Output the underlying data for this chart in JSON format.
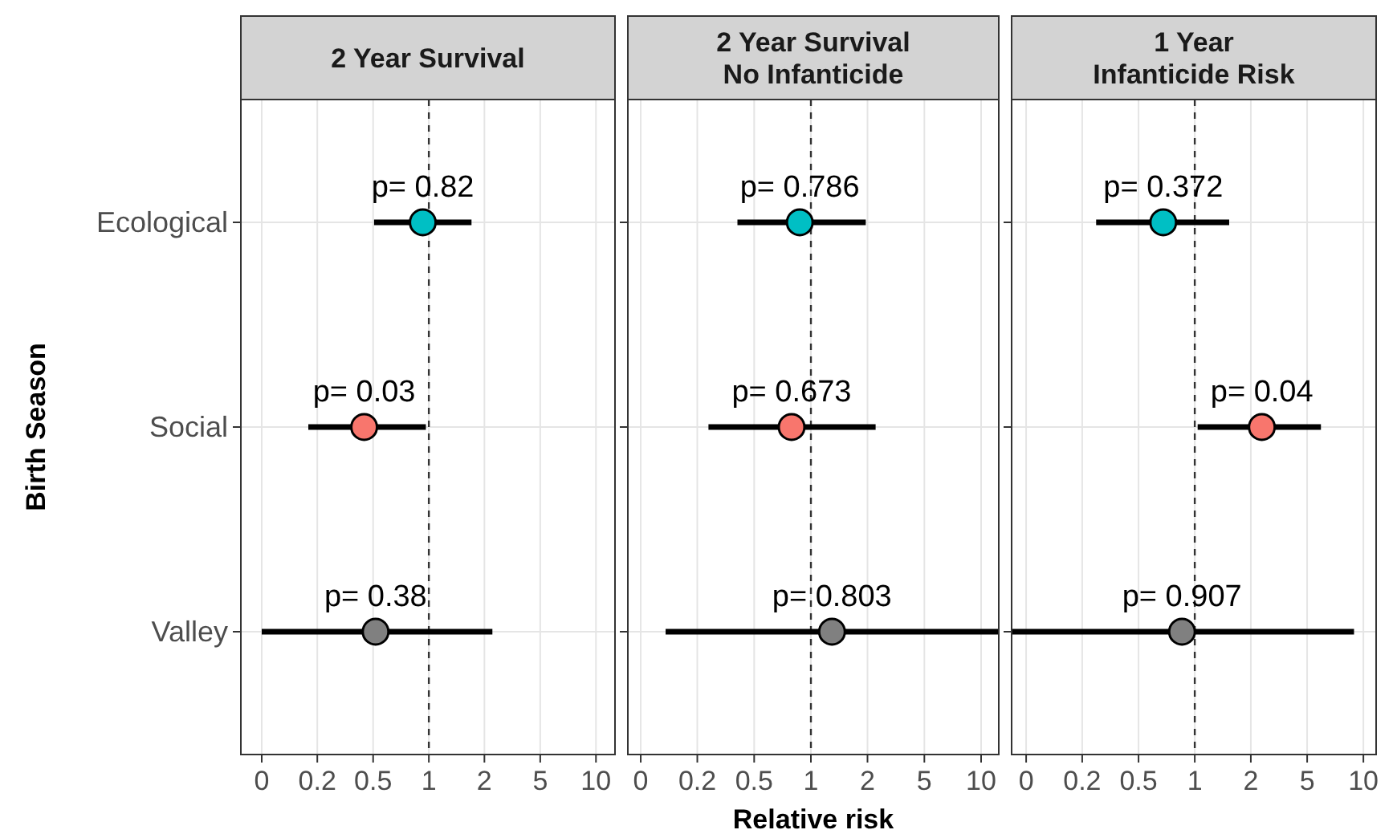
{
  "chart_data": [
    {
      "type": "scatter",
      "orientation": "horizontal",
      "title": "2 Year Survival",
      "ylabel": "Birth Season",
      "categories": [
        "Ecological",
        "Social",
        "Valley"
      ],
      "values": [
        0.92,
        0.41,
        0.48
      ],
      "errors": [
        [
          0.47,
          1.8
        ],
        [
          0.19,
          0.96
        ],
        [
          0.1,
          2.4
        ]
      ],
      "colors": [
        "#00bfc4",
        "#f8766d",
        "#808080"
      ],
      "xlim": [
        0.075,
        13
      ],
      "xticks": [
        {
          "value": 0.1,
          "label": "0"
        },
        {
          "value": 0.215,
          "label": "0.2"
        },
        {
          "value": 0.464,
          "label": "0.5"
        },
        {
          "value": 1,
          "label": "1"
        },
        {
          "value": 2.15,
          "label": "2"
        },
        {
          "value": 4.64,
          "label": "5"
        },
        {
          "value": 10,
          "label": "10"
        }
      ],
      "log": "x",
      "grid": true,
      "marker": "circle",
      "ref_lines": [
        {
          "axis": "x",
          "value": 1,
          "line_style": "dashed"
        }
      ],
      "annotations": [
        {
          "text": "p= 0.82",
          "x": 0.92,
          "y": "Ecological"
        },
        {
          "text": "p= 0.03",
          "x": 0.41,
          "y": "Social"
        },
        {
          "text": "p= 0.38",
          "x": 0.48,
          "y": "Valley"
        }
      ]
    },
    {
      "type": "scatter",
      "orientation": "horizontal",
      "title": "2 Year Survival\nNo Infanticide",
      "xlabel": "Relative risk",
      "categories": [
        "Ecological",
        "Social",
        "Valley"
      ],
      "values": [
        0.86,
        0.77,
        1.33
      ],
      "errors": [
        [
          0.37,
          2.1
        ],
        [
          0.25,
          2.4
        ],
        [
          0.14,
          12.7
        ]
      ],
      "colors": [
        "#00bfc4",
        "#f8766d",
        "#808080"
      ],
      "xlim": [
        0.084,
        12.7
      ],
      "xticks": [
        {
          "value": 0.1,
          "label": "0"
        },
        {
          "value": 0.215,
          "label": "0.2"
        },
        {
          "value": 0.464,
          "label": "0.5"
        },
        {
          "value": 1,
          "label": "1"
        },
        {
          "value": 2.15,
          "label": "2"
        },
        {
          "value": 4.64,
          "label": "5"
        },
        {
          "value": 10,
          "label": "10"
        }
      ],
      "log": "x",
      "grid": true,
      "marker": "circle",
      "tick_labels": "x",
      "ref_lines": [
        {
          "axis": "x",
          "value": 1,
          "line_style": "dashed"
        }
      ],
      "annotations": [
        {
          "text": "p= 0.786",
          "x": 0.86,
          "y": "Ecological"
        },
        {
          "text": "p= 0.673",
          "x": 0.77,
          "y": "Social"
        },
        {
          "text": "p= 0.803",
          "x": 1.33,
          "y": "Valley"
        }
      ]
    },
    {
      "type": "scatter",
      "orientation": "horizontal",
      "title": "1 Year\nInfanticide Risk",
      "categories": [
        "Ecological",
        "Social",
        "Valley"
      ],
      "values": [
        0.65,
        2.5,
        0.84
      ],
      "errors": [
        [
          0.26,
          1.6
        ],
        [
          1.04,
          5.6
        ],
        [
          0.082,
          8.8
        ]
      ],
      "colors": [
        "#00bfc4",
        "#f8766d",
        "#808080"
      ],
      "xlim": [
        0.082,
        11.9
      ],
      "xticks": [
        {
          "value": 0.1,
          "label": "0"
        },
        {
          "value": 0.215,
          "label": "0.2"
        },
        {
          "value": 0.464,
          "label": "0.5"
        },
        {
          "value": 1,
          "label": "1"
        },
        {
          "value": 2.15,
          "label": "2"
        },
        {
          "value": 4.64,
          "label": "5"
        },
        {
          "value": 10,
          "label": "10"
        }
      ],
      "log": "x",
      "grid": true,
      "marker": "circle",
      "tick_labels": "x",
      "ref_lines": [
        {
          "axis": "x",
          "value": 1,
          "line_style": "dashed"
        }
      ],
      "annotations": [
        {
          "text": "p= 0.372",
          "x": 0.65,
          "y": "Ecological"
        },
        {
          "text": "p= 0.04",
          "x": 2.5,
          "y": "Social"
        },
        {
          "text": "p= 0.907",
          "x": 0.84,
          "y": "Valley"
        }
      ]
    }
  ]
}
